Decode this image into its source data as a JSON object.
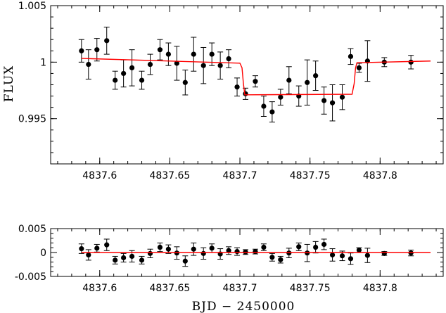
{
  "chart_data": [
    {
      "type": "scatter",
      "panel": "top",
      "ylabel": "FLUX",
      "xlim": [
        4837.565,
        4837.845
      ],
      "ylim": [
        0.991,
        1.005
      ],
      "x_ticks": [
        4837.6,
        4837.65,
        4837.7,
        4837.75,
        4837.8
      ],
      "x_tick_labels": [
        "4837.6",
        "4837.65",
        "4837.7",
        "4837.75",
        "4837.8"
      ],
      "y_ticks": [
        0.995,
        1.0,
        1.005
      ],
      "y_tick_labels": [
        "0.995",
        "1",
        "1.005"
      ],
      "series": [
        {
          "kind": "points_with_errors",
          "color": "#000000",
          "x": [
            4837.587,
            4837.592,
            4837.598,
            4837.605,
            4837.611,
            4837.617,
            4837.623,
            4837.63,
            4837.636,
            4837.643,
            4837.649,
            4837.655,
            4837.661,
            4837.667,
            4837.674,
            4837.68,
            4837.686,
            4837.692,
            4837.698,
            4837.704,
            4837.711,
            4837.717,
            4837.723,
            4837.729,
            4837.735,
            4837.742,
            4837.748,
            4837.754,
            4837.76,
            4837.766,
            4837.773,
            4837.779,
            4837.785,
            4837.791,
            4837.803,
            4837.822
          ],
          "y": [
            1.001,
            0.9998,
            1.0011,
            1.0019,
            0.9984,
            0.999,
            0.9995,
            0.9984,
            0.9998,
            1.0011,
            1.0007,
            0.9999,
            0.9982,
            1.0007,
            0.9997,
            1.0007,
            0.9997,
            1.0003,
            0.9978,
            0.9972,
            0.9983,
            0.9961,
            0.9956,
            0.9969,
            0.9984,
            0.997,
            0.9982,
            0.9988,
            0.9966,
            0.9964,
            0.9969,
            1.0005,
            0.9995,
            1.0001,
            1.0,
            1.0
          ],
          "yerr": [
            0.001,
            0.0013,
            0.001,
            0.0012,
            0.0008,
            0.0012,
            0.0016,
            0.0008,
            0.0009,
            0.0009,
            0.001,
            0.0015,
            0.0011,
            0.0015,
            0.0016,
            0.001,
            0.0012,
            0.0008,
            0.0008,
            0.0005,
            0.0005,
            0.0009,
            0.0009,
            0.0007,
            0.0012,
            0.0009,
            0.002,
            0.0013,
            0.0012,
            0.0016,
            0.0011,
            0.0007,
            0.0004,
            0.0018,
            0.0004,
            0.0006
          ]
        },
        {
          "kind": "model_line",
          "color": "#ff0000",
          "x": [
            4837.587,
            4837.7,
            4837.7015,
            4837.7025,
            4837.7035,
            4837.78,
            4837.7815,
            4837.7825,
            4837.7835,
            4837.836
          ],
          "y": [
            1.00033,
            0.99991,
            0.9995,
            0.9981,
            0.99711,
            0.99716,
            0.9981,
            0.9995,
            0.99995,
            1.0001
          ]
        }
      ]
    },
    {
      "type": "scatter",
      "panel": "bottom",
      "xlabel": "BJD  −  2450000",
      "xlim": [
        4837.565,
        4837.845
      ],
      "ylim": [
        -0.005,
        0.005
      ],
      "x_ticks": [
        4837.6,
        4837.65,
        4837.7,
        4837.75,
        4837.8
      ],
      "x_tick_labels": [
        "4837.6",
        "4837.65",
        "4837.7",
        "4837.75",
        "4837.8"
      ],
      "y_ticks": [
        -0.005,
        0.0,
        0.005
      ],
      "y_tick_labels": [
        "-0.005",
        "0",
        "0.005"
      ],
      "series": [
        {
          "kind": "points_with_errors",
          "color": "#000000",
          "x": [
            4837.587,
            4837.592,
            4837.598,
            4837.605,
            4837.611,
            4837.617,
            4837.623,
            4837.63,
            4837.636,
            4837.643,
            4837.649,
            4837.655,
            4837.661,
            4837.667,
            4837.674,
            4837.68,
            4837.686,
            4837.692,
            4837.698,
            4837.704,
            4837.711,
            4837.717,
            4837.723,
            4837.729,
            4837.735,
            4837.742,
            4837.748,
            4837.754,
            4837.76,
            4837.766,
            4837.773,
            4837.779,
            4837.785,
            4837.791,
            4837.803,
            4837.822
          ],
          "y": [
            0.0008,
            -0.0005,
            0.0009,
            0.0016,
            -0.0016,
            -0.0011,
            -0.0008,
            -0.0016,
            -0.0002,
            0.0011,
            0.0007,
            -0.0001,
            -0.0018,
            0.0007,
            -0.0002,
            0.0009,
            -0.0003,
            0.0004,
            0.0002,
            0.0001,
            0.0002,
            0.0011,
            -0.001,
            -0.0015,
            -0.0001,
            0.0012,
            -0.0001,
            0.0011,
            0.0017,
            -0.0005,
            -0.0007,
            -0.0013,
            0.0005,
            -0.0006,
            -0.0002,
            -0.0001
          ],
          "yerr": [
            0.001,
            0.0011,
            0.0008,
            0.0012,
            0.0008,
            0.0009,
            0.0012,
            0.0008,
            0.0009,
            0.0009,
            0.0009,
            0.0013,
            0.0011,
            0.0013,
            0.0012,
            0.0009,
            0.0011,
            0.0008,
            0.0008,
            0.0005,
            0.0005,
            0.0007,
            0.0008,
            0.0007,
            0.001,
            0.0008,
            0.0018,
            0.0012,
            0.0011,
            0.0013,
            0.001,
            0.0012,
            0.0005,
            0.0015,
            0.0004,
            0.0006
          ]
        },
        {
          "kind": "model_line",
          "color": "#ff0000",
          "x": [
            4837.587,
            4837.836
          ],
          "y": [
            0.0,
            0.0
          ]
        }
      ]
    }
  ]
}
